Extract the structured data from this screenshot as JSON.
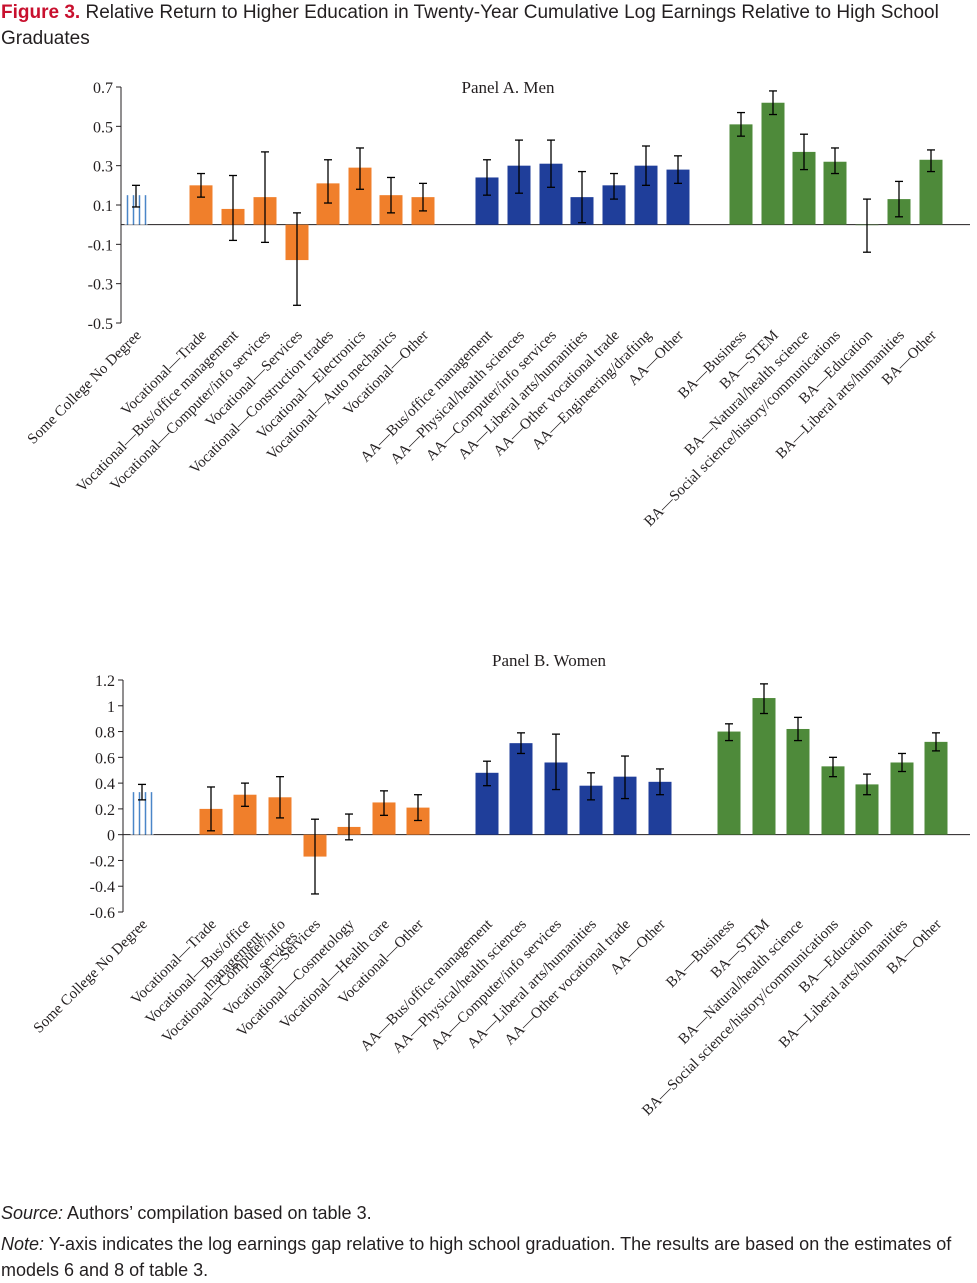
{
  "figure": {
    "label": "Figure 3.",
    "title": "Relative Return to Higher Education in Twenty-Year Cumulative Log Earnings Relative to High School Graduates"
  },
  "colors": {
    "some_college": "#4a86c8",
    "vocational": "#f07f2b",
    "aa": "#1f3e9a",
    "ba": "#4e8a3a",
    "errorbar": "#000000",
    "axis": "#231f20"
  },
  "chart_data": [
    {
      "type": "bar",
      "title": "Panel A. Men",
      "ylim": [
        -0.5,
        0.7
      ],
      "yticks": [
        0.7,
        0.5,
        0.3,
        0.1,
        -0.1,
        -0.3,
        -0.5
      ],
      "ytick_labels": [
        "0.7",
        "0.5",
        "0.3",
        "0.1",
        "-0.1",
        "-0.3",
        "-0.5"
      ],
      "grid": false,
      "legend": "none",
      "groups": [
        {
          "name": "some_college",
          "categories": [
            "Some College No Degree"
          ],
          "values": [
            0.15
          ],
          "lower": [
            0.09
          ],
          "upper": [
            0.2
          ],
          "style": "hatched"
        },
        {
          "name": "vocational",
          "categories": [
            "Vocational—Trade",
            "Vocational—Bus/office management",
            "Vocational—Computer/info services",
            "Vocational—Services",
            "Vocational—Construction trades",
            "Vocational—Electronics",
            "Vocational—Auto mechanics",
            "Vocational—Other"
          ],
          "values": [
            0.2,
            0.08,
            0.14,
            -0.18,
            0.21,
            0.29,
            0.15,
            0.14
          ],
          "lower": [
            0.14,
            -0.08,
            -0.09,
            -0.41,
            0.11,
            0.18,
            0.06,
            0.07
          ],
          "upper": [
            0.26,
            0.25,
            0.37,
            0.06,
            0.33,
            0.39,
            0.24,
            0.21
          ]
        },
        {
          "name": "aa",
          "categories": [
            "AA—Bus/office management",
            "AA—Physical/health sciences",
            "AA—Computer/info services",
            "AA—Liberal arts/humanities",
            "AA—Other vocational trade",
            "AA—Engineering/drafting",
            "AA—Other"
          ],
          "values": [
            0.24,
            0.3,
            0.31,
            0.14,
            0.2,
            0.3,
            0.28
          ],
          "lower": [
            0.15,
            0.16,
            0.19,
            0.01,
            0.13,
            0.2,
            0.21
          ],
          "upper": [
            0.33,
            0.43,
            0.43,
            0.27,
            0.26,
            0.4,
            0.35
          ]
        },
        {
          "name": "ba",
          "categories": [
            "BA—Business",
            "BA—STEM",
            "BA—Natural/health science",
            "BA—Social science/history/communications",
            "BA—Education",
            "BA—Liberal arts/humanities",
            "BA—Other"
          ],
          "values": [
            0.51,
            0.62,
            0.37,
            0.32,
            0.0,
            0.13,
            0.33
          ],
          "lower": [
            0.45,
            0.56,
            0.28,
            0.26,
            -0.14,
            0.04,
            0.27
          ],
          "upper": [
            0.57,
            0.68,
            0.46,
            0.39,
            0.13,
            0.22,
            0.38
          ]
        }
      ]
    },
    {
      "type": "bar",
      "title": "Panel B. Women",
      "ylim": [
        -0.6,
        1.2
      ],
      "yticks": [
        1.2,
        1.0,
        0.8,
        0.6,
        0.4,
        0.2,
        0.0,
        -0.2,
        -0.4,
        -0.6
      ],
      "ytick_labels": [
        "1.2",
        "1",
        "0.8",
        "0.6",
        "0.4",
        "0.2",
        "0",
        "-0.2",
        "-0.4",
        "-0.6"
      ],
      "grid": false,
      "legend": "none",
      "groups": [
        {
          "name": "some_college",
          "categories": [
            "Some College No Degree"
          ],
          "values": [
            0.33
          ],
          "lower": [
            0.27
          ],
          "upper": [
            0.39
          ],
          "style": "hatched"
        },
        {
          "name": "vocational",
          "categories": [
            "Vocational—Trade",
            "Vocational—Bus/office management",
            "Vocational—Computer/info services",
            "Vocational—Services",
            "Vocational—Cosmetology",
            "Vocational—Health care",
            "Vocational—Other"
          ],
          "label_lines": [
            [
              "Vocational—Trade"
            ],
            [
              "Vocational—Bus/office",
              "management"
            ],
            [
              "Vocational—Computer/info",
              "services"
            ],
            [
              "Vocational—Services"
            ],
            [
              "Vocational—Cosmetology"
            ],
            [
              "Vocational—Health care"
            ],
            [
              "Vocational—Other"
            ]
          ],
          "values": [
            0.2,
            0.31,
            0.29,
            -0.17,
            0.06,
            0.25,
            0.21
          ],
          "lower": [
            0.03,
            0.22,
            0.13,
            -0.46,
            -0.04,
            0.15,
            0.11
          ],
          "upper": [
            0.37,
            0.4,
            0.45,
            0.12,
            0.16,
            0.34,
            0.31
          ]
        },
        {
          "name": "aa",
          "categories": [
            "AA—Bus/office management",
            "AA—Physical/health sciences",
            "AA—Computer/info services",
            "AA—Liberal arts/humanities",
            "AA—Other vocational trade",
            "AA—Other"
          ],
          "values": [
            0.48,
            0.71,
            0.56,
            0.38,
            0.45,
            0.41
          ],
          "lower": [
            0.38,
            0.63,
            0.35,
            0.27,
            0.28,
            0.31
          ],
          "upper": [
            0.57,
            0.79,
            0.78,
            0.48,
            0.61,
            0.51
          ]
        },
        {
          "name": "ba",
          "categories": [
            "BA—Business",
            "BA—STEM",
            "BA—Natural/health science",
            "BA—Social science/history/communications",
            "BA—Education",
            "BA—Liberal arts/humanities",
            "BA—Other"
          ],
          "values": [
            0.8,
            1.06,
            0.82,
            0.53,
            0.39,
            0.56,
            0.72
          ],
          "lower": [
            0.73,
            0.94,
            0.73,
            0.45,
            0.31,
            0.49,
            0.65
          ],
          "upper": [
            0.86,
            1.17,
            0.91,
            0.6,
            0.47,
            0.63,
            0.79
          ]
        }
      ]
    }
  ],
  "footer": {
    "source_label": "Source:",
    "source_text": " Authors’ compilation based on table 3.",
    "note_label": "Note:",
    "note_text": " Y-axis indicates the log earnings gap relative to high school graduation. The results are based on the estimates of models 6 and 8 of table 3."
  }
}
